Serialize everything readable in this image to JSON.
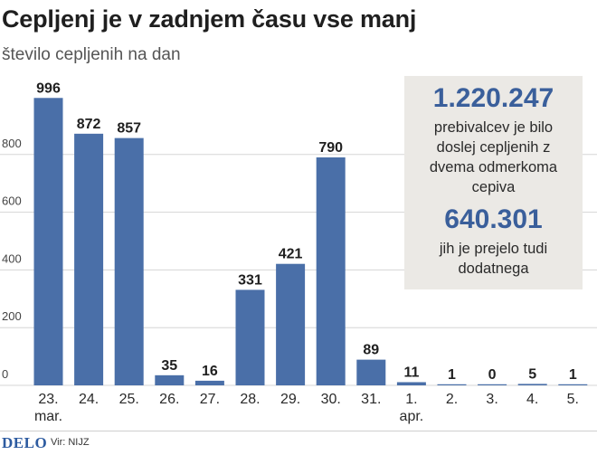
{
  "header": {
    "title": "Cepljenj je v zadnjem času vse manj",
    "subtitle": "število cepljenih na dan"
  },
  "infobox": {
    "total_vaccinated": "1.220.247",
    "total_text": "prebivalcev je bilo doslej cepljenih z dvema odmerkoma cepiva",
    "booster": "640.301",
    "booster_text": "jih je prejelo tudi dodatnega"
  },
  "footer": {
    "logo": "DELO",
    "source": "Vir: NIJZ"
  },
  "colors": {
    "bar": "#4a6fa8",
    "grid": "#d6d6d6",
    "accent": "#3a5f9b"
  },
  "chart_data": {
    "type": "bar",
    "title": "Cepljenj je v zadnjem času vse manj",
    "subtitle": "število cepljenih na dan",
    "categories": [
      [
        "23.",
        "mar."
      ],
      [
        "24."
      ],
      [
        "25."
      ],
      [
        "26."
      ],
      [
        "27."
      ],
      [
        "28."
      ],
      [
        "29."
      ],
      [
        "30."
      ],
      [
        "31."
      ],
      [
        "1.",
        "apr."
      ],
      [
        "2."
      ],
      [
        "3."
      ],
      [
        "4."
      ],
      [
        "5."
      ]
    ],
    "values": [
      996,
      872,
      857,
      35,
      16,
      331,
      421,
      790,
      89,
      11,
      1,
      0,
      5,
      1
    ],
    "yticks": [
      0,
      200,
      400,
      600,
      800
    ],
    "ylim": [
      0,
      1000
    ],
    "grid": true
  }
}
